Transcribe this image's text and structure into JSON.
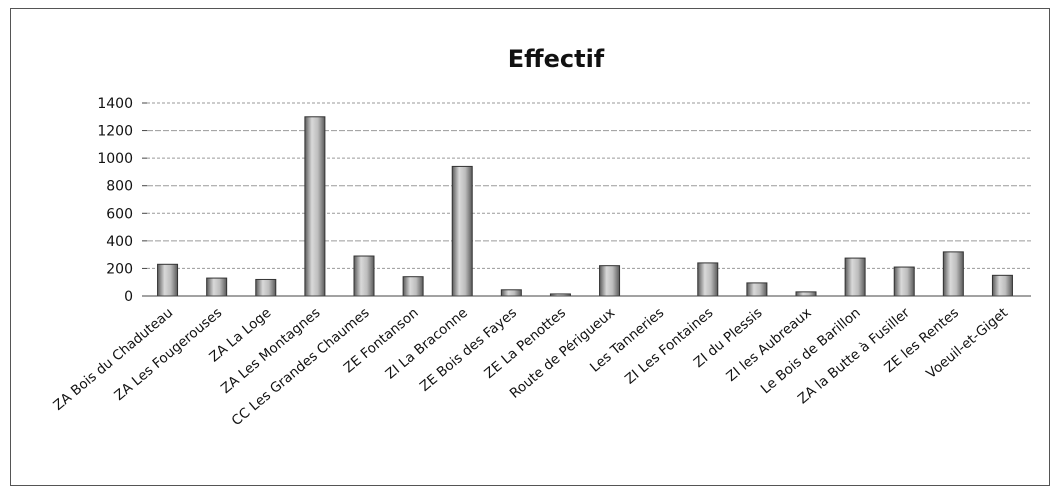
{
  "chart_data": {
    "type": "bar",
    "title": "Effectif",
    "xlabel": "",
    "ylabel": "",
    "ylim": [
      0,
      1400
    ],
    "yticks": [
      0,
      200,
      400,
      600,
      800,
      1000,
      1200,
      1400
    ],
    "grid": true,
    "legend": "none",
    "categories": [
      "ZA Bois du Chaduteau",
      "ZA Les Fougerouses",
      "ZA La Loge",
      "ZA Les Montagnes",
      "CC Les Grandes Chaumes",
      "ZE Fontanson",
      "ZI La Braconne",
      "ZE Bois des Fayes",
      "ZE La Penottes",
      "Route de Périgueux",
      "Les Tanneries",
      "ZI Les Fontaines",
      "ZI du Plessis",
      "ZI les Aubreaux",
      "Le Bois de Barillon",
      "ZA la Butte à Fusiller",
      "ZE les Rentes",
      "Voeuil-et-Giget"
    ],
    "values": [
      230,
      130,
      120,
      1300,
      290,
      140,
      940,
      45,
      15,
      220,
      0,
      240,
      95,
      30,
      275,
      210,
      320,
      150
    ],
    "colors": {
      "bar_fill": "#9a9a9a",
      "bar_light": "#d9d9d9",
      "bar_dark": "#5a5a5a",
      "grid": "#9a9a9a",
      "axis": "#444444"
    }
  }
}
